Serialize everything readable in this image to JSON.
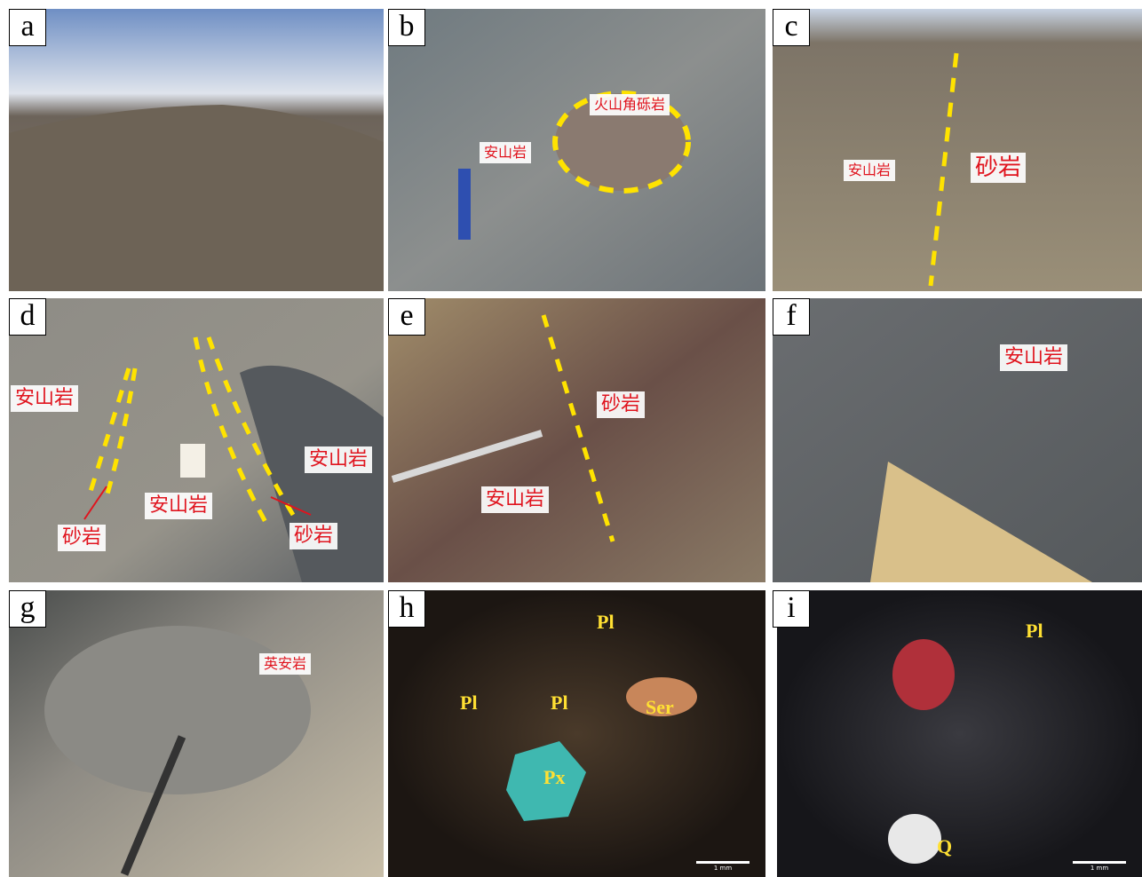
{
  "panels": [
    {
      "letter": "a",
      "labels": []
    },
    {
      "letter": "b",
      "labels": [
        "火山角砾岩",
        "安山岩"
      ]
    },
    {
      "letter": "c",
      "labels": [
        "安山岩",
        "砂岩"
      ]
    },
    {
      "letter": "d",
      "labels": [
        "安山岩",
        "安山岩",
        "安山岩",
        "砂岩",
        "砂岩"
      ]
    },
    {
      "letter": "e",
      "labels": [
        "砂岩",
        "安山岩"
      ]
    },
    {
      "letter": "f",
      "labels": [
        "安山岩"
      ]
    },
    {
      "letter": "g",
      "labels": [
        "英安岩"
      ]
    },
    {
      "letter": "h",
      "labels": [
        "Pl",
        "Pl",
        "Pl",
        "Ser",
        "Px"
      ],
      "scale_bar": "1 mm"
    },
    {
      "letter": "i",
      "labels": [
        "Pl",
        "Q"
      ],
      "scale_bar": "1 mm"
    }
  ]
}
